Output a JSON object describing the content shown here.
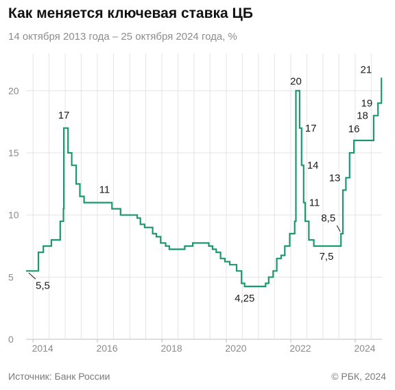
{
  "header": {
    "title": "Как меняется ключевая ставка ЦБ",
    "subtitle": "14 октября 2013 года – 25 октября 2024 года, %"
  },
  "footer": {
    "source": "Источник: Банк России",
    "copyright": "© РБК, 2024"
  },
  "colors": {
    "line": "#1a9a6c",
    "grid": "#e3e3e3",
    "text": "#1a1a1a",
    "muted": "#7a7a7a"
  },
  "chart_data": {
    "type": "line",
    "step": true,
    "title": "Как меняется ключевая ставка ЦБ",
    "subtitle": "14 октября 2013 года – 25 октября 2024 года, %",
    "xlabel": "",
    "ylabel": "",
    "xlim": [
      "2013-10-14",
      "2024-10-25"
    ],
    "ylim": [
      0,
      23
    ],
    "y_ticks": [
      0,
      5,
      10,
      15,
      20
    ],
    "x_ticks": [
      "2014",
      "2016",
      "2018",
      "2020",
      "2022",
      "2024"
    ],
    "grid": true,
    "legend": "none",
    "series": [
      {
        "points": [
          [
            "2013-10-14",
            5.5
          ],
          [
            "2014-03-03",
            7.0
          ],
          [
            "2014-04-28",
            7.5
          ],
          [
            "2014-07-28",
            8.0
          ],
          [
            "2014-11-05",
            9.5
          ],
          [
            "2014-12-12",
            10.5
          ],
          [
            "2014-12-16",
            17.0
          ],
          [
            "2015-02-02",
            15.0
          ],
          [
            "2015-03-16",
            14.0
          ],
          [
            "2015-05-05",
            12.5
          ],
          [
            "2015-06-16",
            11.5
          ],
          [
            "2015-08-03",
            11.0
          ],
          [
            "2016-06-14",
            10.5
          ],
          [
            "2016-09-19",
            10.0
          ],
          [
            "2017-03-27",
            9.75
          ],
          [
            "2017-05-02",
            9.25
          ],
          [
            "2017-06-19",
            9.0
          ],
          [
            "2017-09-18",
            8.5
          ],
          [
            "2017-10-30",
            8.25
          ],
          [
            "2017-12-18",
            7.75
          ],
          [
            "2018-02-12",
            7.5
          ],
          [
            "2018-03-26",
            7.25
          ],
          [
            "2018-09-17",
            7.5
          ],
          [
            "2018-12-17",
            7.75
          ],
          [
            "2019-06-17",
            7.5
          ],
          [
            "2019-07-29",
            7.25
          ],
          [
            "2019-09-09",
            7.0
          ],
          [
            "2019-10-28",
            6.5
          ],
          [
            "2019-12-16",
            6.25
          ],
          [
            "2020-02-10",
            6.0
          ],
          [
            "2020-04-27",
            5.5
          ],
          [
            "2020-06-22",
            4.5
          ],
          [
            "2020-07-27",
            4.25
          ],
          [
            "2021-03-22",
            4.5
          ],
          [
            "2021-04-26",
            5.0
          ],
          [
            "2021-06-15",
            5.5
          ],
          [
            "2021-07-26",
            6.5
          ],
          [
            "2021-09-13",
            6.75
          ],
          [
            "2021-10-25",
            7.5
          ],
          [
            "2021-12-20",
            8.5
          ],
          [
            "2022-02-14",
            9.5
          ],
          [
            "2022-02-28",
            20.0
          ],
          [
            "2022-04-11",
            17.0
          ],
          [
            "2022-05-04",
            14.0
          ],
          [
            "2022-05-27",
            11.0
          ],
          [
            "2022-06-14",
            9.5
          ],
          [
            "2022-07-25",
            8.0
          ],
          [
            "2022-09-19",
            7.5
          ],
          [
            "2023-07-24",
            8.5
          ],
          [
            "2023-08-15",
            12.0
          ],
          [
            "2023-09-18",
            13.0
          ],
          [
            "2023-10-30",
            15.0
          ],
          [
            "2023-12-18",
            16.0
          ],
          [
            "2024-07-29",
            18.0
          ],
          [
            "2024-09-16",
            19.0
          ],
          [
            "2024-10-25",
            21.0
          ],
          [
            "2024-10-31",
            21.0
          ]
        ]
      }
    ],
    "annotations": [
      {
        "text": "5,5",
        "date": "2013-10-14",
        "value": 5.5,
        "pos": "below-right",
        "leader": true
      },
      {
        "text": "17",
        "date": "2014-12-16",
        "value": 17.0,
        "pos": "above"
      },
      {
        "text": "11",
        "date": "2015-08-03",
        "value": 11.0,
        "pos": "above-right"
      },
      {
        "text": "4,25",
        "date": "2020-07-27",
        "value": 4.25,
        "pos": "below"
      },
      {
        "text": "20",
        "date": "2022-02-28",
        "value": 20.0,
        "pos": "above"
      },
      {
        "text": "17",
        "date": "2022-04-11",
        "value": 17.0,
        "pos": "right"
      },
      {
        "text": "14",
        "date": "2022-05-04",
        "value": 14.0,
        "pos": "right"
      },
      {
        "text": "11",
        "date": "2022-05-27",
        "value": 11.0,
        "pos": "right"
      },
      {
        "text": "7,5",
        "date": "2022-09-19",
        "value": 7.5,
        "pos": "below-right"
      },
      {
        "text": "8,5",
        "date": "2023-07-24",
        "value": 8.5,
        "pos": "above-left",
        "leader": true
      },
      {
        "text": "13",
        "date": "2023-09-18",
        "value": 13.0,
        "pos": "left"
      },
      {
        "text": "16",
        "date": "2023-12-18",
        "value": 16.0,
        "pos": "above"
      },
      {
        "text": "18",
        "date": "2024-07-29",
        "value": 18.0,
        "pos": "left"
      },
      {
        "text": "19",
        "date": "2024-09-16",
        "value": 19.0,
        "pos": "left"
      },
      {
        "text": "21",
        "date": "2024-10-25",
        "value": 21.0,
        "pos": "above-left"
      }
    ]
  }
}
